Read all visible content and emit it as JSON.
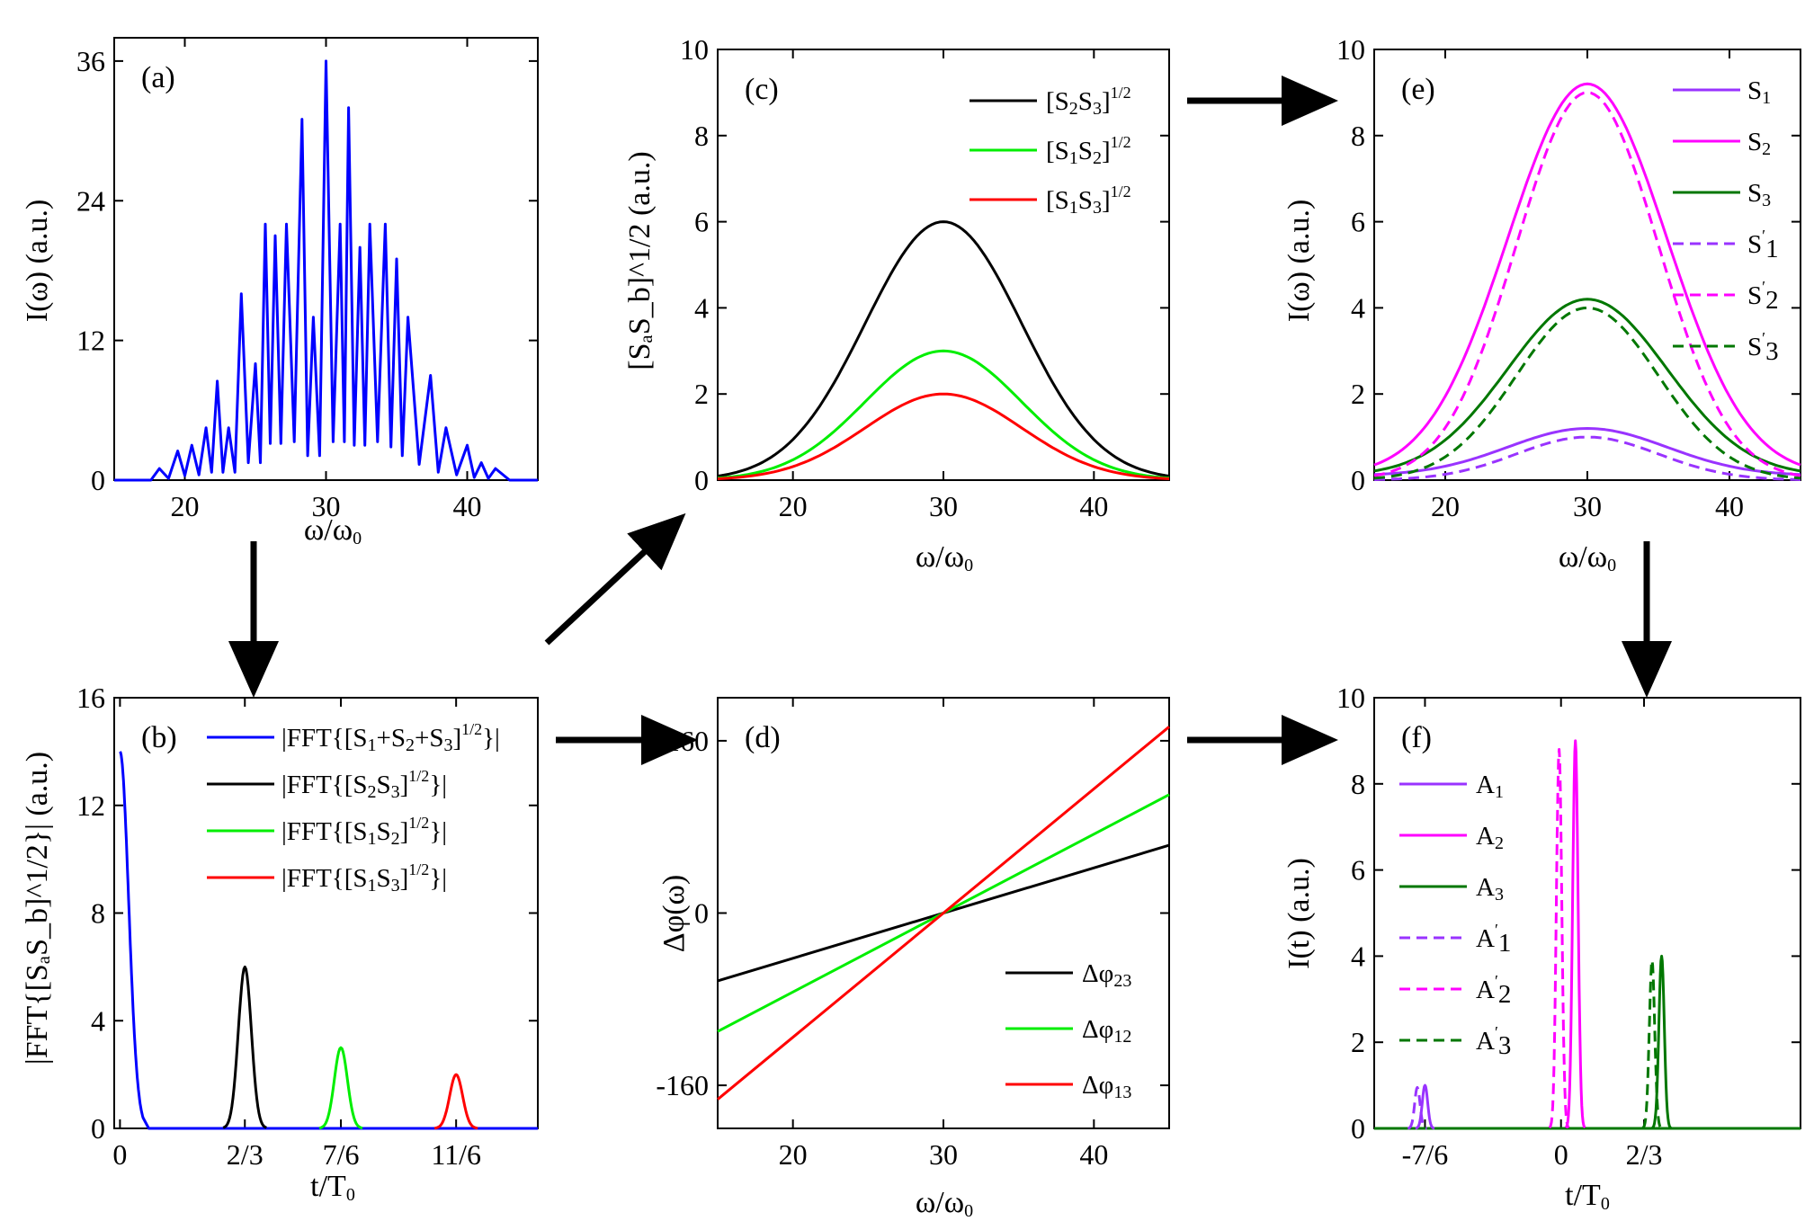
{
  "panels": {
    "a": {
      "label": "(a)",
      "xlabel": "ω/ω₀",
      "ylabel": "I(ω) (a.u.)",
      "xticks": [
        "20",
        "30",
        "40"
      ],
      "yticks": [
        "0",
        "12",
        "24",
        "36"
      ]
    },
    "b": {
      "label": "(b)",
      "xlabel": "t/T₀",
      "ylabel": "|FFT{[SₐS_b]^{1/2}}| (a.u.)",
      "xticks": [
        "0",
        "2/3",
        "7/6",
        "11/6"
      ],
      "yticks": [
        "0",
        "4",
        "8",
        "12",
        "16"
      ]
    },
    "c": {
      "label": "(c)",
      "xlabel": "ω/ω₀",
      "ylabel": "[SₐS_b]^{1/2} (a.u.)",
      "xticks": [
        "20",
        "30",
        "40"
      ],
      "yticks": [
        "0",
        "2",
        "4",
        "6",
        "8",
        "10"
      ]
    },
    "d": {
      "label": "(d)",
      "xlabel": "ω/ω₀",
      "ylabel": "Δφ(ω)",
      "xticks": [
        "20",
        "30",
        "40"
      ],
      "yticks": [
        "-160",
        "0",
        "160"
      ]
    },
    "e": {
      "label": "(e)",
      "xlabel": "ω/ω₀",
      "ylabel": "I(ω) (a.u.)",
      "xticks": [
        "20",
        "30",
        "40"
      ],
      "yticks": [
        "0",
        "2",
        "4",
        "6",
        "8",
        "10"
      ]
    },
    "f": {
      "label": "(f)",
      "xlabel": "t/T₀",
      "ylabel": "I(t) (a.u.)",
      "xticks": [
        "-7/6",
        "0",
        "2/3"
      ],
      "yticks": [
        "0",
        "2",
        "4",
        "6",
        "8",
        "10"
      ]
    }
  },
  "colors": {
    "blue": "#0000ff",
    "black": "#000000",
    "green": "#00ee00",
    "red": "#ff0000",
    "violet": "#9933ff",
    "magenta": "#ff00ff",
    "darkgreen": "#007700"
  },
  "chart_data": [
    {
      "id": "a",
      "type": "line",
      "xlim": [
        15,
        45
      ],
      "ylim": [
        0,
        38
      ],
      "series": [
        {
          "values_note": "interference spectrum",
          "x": [
            15,
            17,
            18.2,
            19.5,
            20.5,
            21.5,
            22.3,
            23.1,
            24,
            25,
            25.7,
            26.4,
            27.2,
            28.3,
            29.1,
            30,
            31,
            31.6,
            32.4,
            33.1,
            34.2,
            35,
            35.8,
            37.4,
            38.5,
            40,
            41,
            42,
            44,
            45
          ],
          "y": [
            0,
            0,
            1,
            2.5,
            3,
            4.5,
            8.5,
            4.5,
            16,
            10,
            22,
            21,
            22,
            31,
            14,
            36,
            22,
            32,
            20,
            22,
            22,
            19,
            14,
            9,
            4.5,
            3,
            1.5,
            1,
            0,
            0
          ]
        }
      ]
    },
    {
      "id": "b",
      "type": "line",
      "xlim": [
        -0.04,
        2.9
      ],
      "ylim": [
        0,
        16
      ],
      "series": [
        {
          "name": "|FFT{[S₁+S₂+S₃]^{1/2}}|",
          "color": "blue",
          "peak_x": 0,
          "peak_y": 14
        },
        {
          "name": "|FFT{[S₂S₃]^{1/2}}|",
          "color": "black",
          "peak_x": 0.8667,
          "peak_y": 6
        },
        {
          "name": "|FFT{[S₁S₂]^{1/2}}|",
          "color": "green",
          "peak_x": 1.5333,
          "peak_y": 3
        },
        {
          "name": "|FFT{[S₁S₃]^{1/2}}|",
          "color": "red",
          "peak_x": 2.333,
          "peak_y": 2
        }
      ]
    },
    {
      "id": "c",
      "type": "line",
      "xlim": [
        15,
        45
      ],
      "ylim": [
        0,
        10
      ],
      "series": [
        {
          "name": "[S₂S₃]^{1/2}",
          "color": "black",
          "peak": 6,
          "center": 30
        },
        {
          "name": "[S₁S₂]^{1/2}",
          "color": "green",
          "peak": 3,
          "center": 30
        },
        {
          "name": "[S₁S₃]^{1/2}",
          "color": "red",
          "peak": 2,
          "center": 30
        }
      ]
    },
    {
      "id": "d",
      "type": "line",
      "xlim": [
        15,
        45
      ],
      "ylim": [
        -200,
        200
      ],
      "series": [
        {
          "name": "Δφ₂₃",
          "color": "black",
          "x": [
            15,
            45
          ],
          "y": [
            -63,
            63
          ]
        },
        {
          "name": "Δφ₁₂",
          "color": "green",
          "x": [
            15,
            45
          ],
          "y": [
            -110,
            110
          ]
        },
        {
          "name": "Δφ₁₃",
          "color": "red",
          "x": [
            15,
            45
          ],
          "y": [
            -173,
            173
          ]
        }
      ]
    },
    {
      "id": "e",
      "type": "line",
      "xlim": [
        15,
        45
      ],
      "ylim": [
        0,
        10
      ],
      "series": [
        {
          "name": "S₁",
          "color": "violet",
          "peak": 1.2,
          "dashed": false
        },
        {
          "name": "S₂",
          "color": "magenta",
          "peak": 9.2,
          "dashed": false
        },
        {
          "name": "S₃",
          "color": "darkgreen",
          "peak": 4.2,
          "dashed": false
        },
        {
          "name": "S′₁",
          "color": "violet",
          "peak": 1.0,
          "dashed": true
        },
        {
          "name": "S′₂",
          "color": "magenta",
          "peak": 9.0,
          "dashed": true
        },
        {
          "name": "S′₃",
          "color": "darkgreen",
          "peak": 4.0,
          "dashed": true
        }
      ]
    },
    {
      "id": "f",
      "type": "line",
      "xlim": [
        -1.95,
        2.5
      ],
      "ylim": [
        0,
        10
      ],
      "series": [
        {
          "name": "A₁",
          "color": "violet",
          "peak_x": -1.42,
          "peak_y": 1.0,
          "dashed": false
        },
        {
          "name": "A₂",
          "color": "magenta",
          "peak_x": 0.15,
          "peak_y": 9.0,
          "dashed": false
        },
        {
          "name": "A₃",
          "color": "darkgreen",
          "peak_x": 1.05,
          "peak_y": 4.0,
          "dashed": false
        },
        {
          "name": "A′₁",
          "color": "violet",
          "peak_x": -1.5,
          "peak_y": 0.95,
          "dashed": true
        },
        {
          "name": "A′₂",
          "color": "magenta",
          "peak_x": -0.02,
          "peak_y": 8.8,
          "dashed": true
        },
        {
          "name": "A′₃",
          "color": "darkgreen",
          "peak_x": 0.95,
          "peak_y": 3.9,
          "dashed": true
        }
      ]
    }
  ]
}
